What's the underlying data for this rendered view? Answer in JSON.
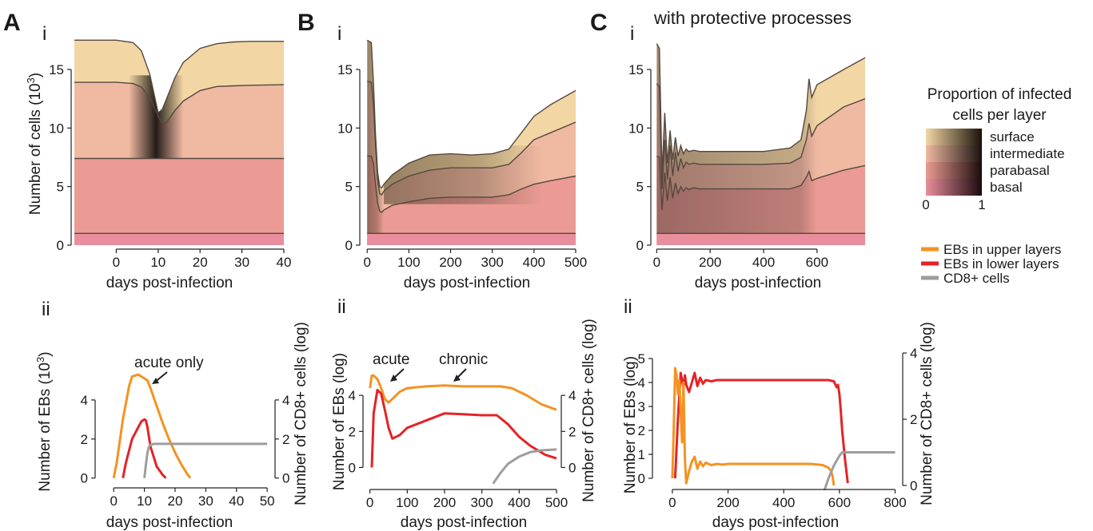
{
  "figure": {
    "panel_labels": [
      "A",
      "B",
      "C"
    ],
    "sub_top": "i",
    "sub_bottom": "ii",
    "c_title": "with protective processes",
    "xlabel": "days post-infection",
    "top_ylabel_base": "Number of cells (10",
    "top_ylabel_sup": "3",
    "top_ylabel_end": ")",
    "a_ii_ylabel_base": "Number of EBs (10",
    "a_ii_ylabel_sup": "3",
    "a_ii_ylabel_end": ")",
    "log_ylabel": "Number of EBs  (log)",
    "cd8_ylabel": "Number of CD8+ cells (log)",
    "ann_acute_only": "acute only",
    "ann_acute": "acute",
    "ann_chronic": "chronic"
  },
  "legend_layers": {
    "title_line1": "Proportion of infected",
    "title_line2": "cells per layer",
    "rows": [
      "surface",
      "intermediate",
      "parabasal",
      "basal"
    ],
    "scale_min": "0",
    "scale_max": "1",
    "colors": [
      "#f2d6a4",
      "#f0b9a2",
      "#eb9b93",
      "#e98e9c"
    ]
  },
  "legend_lines": {
    "items": [
      {
        "label": "EBs in upper layers",
        "color": "#f39321"
      },
      {
        "label": "EBs in lower layers",
        "color": "#e42327"
      },
      {
        "label": "CD8+ cells",
        "color": "#9d9d9d"
      }
    ]
  },
  "chart_data": [
    {
      "id": "A-i",
      "type": "area",
      "x": [
        -10,
        0,
        4,
        6,
        8,
        10,
        11,
        12,
        14,
        16,
        20,
        24,
        28,
        32,
        40
      ],
      "series": [
        {
          "name": "basal",
          "values": [
            1,
            1,
            1,
            1,
            1,
            1,
            1,
            1,
            1,
            1,
            1,
            1,
            1,
            1,
            1
          ]
        },
        {
          "name": "parabasal",
          "values": [
            7.4,
            7.4,
            7.4,
            7.4,
            7.4,
            7.4,
            7.4,
            7.4,
            7.4,
            7.4,
            7.4,
            7.4,
            7.4,
            7.4,
            7.4
          ]
        },
        {
          "name": "intermediate",
          "values": [
            13.9,
            13.9,
            13.8,
            13.5,
            12.6,
            11.0,
            10.3,
            10.5,
            11.5,
            12.3,
            13.2,
            13.55,
            13.6,
            13.65,
            13.7
          ]
        },
        {
          "name": "surface",
          "values": [
            17.5,
            17.5,
            17.3,
            16.6,
            14.6,
            11.3,
            11.6,
            12.5,
            14.3,
            15.6,
            16.8,
            17.2,
            17.35,
            17.4,
            17.4
          ]
        }
      ],
      "ylim": [
        0,
        18
      ],
      "xlim": [
        -10,
        40
      ],
      "xticks": [
        0,
        10,
        20,
        30,
        40
      ],
      "yticks": [
        0,
        5,
        10,
        15
      ]
    },
    {
      "id": "B-i",
      "type": "area",
      "x": [
        0,
        10,
        15,
        20,
        25,
        30,
        35,
        40,
        60,
        100,
        150,
        200,
        250,
        300,
        340,
        370,
        400,
        440,
        500
      ],
      "series": [
        {
          "name": "basal",
          "values": [
            1,
            1,
            1,
            1,
            1,
            1,
            1,
            1,
            1,
            1,
            1,
            1,
            1,
            1,
            1,
            1,
            1,
            1,
            1
          ]
        },
        {
          "name": "parabasal",
          "values": [
            7.6,
            7.6,
            7.0,
            5.2,
            3.6,
            2.9,
            2.8,
            3.0,
            3.4,
            3.7,
            4.0,
            4.1,
            4.1,
            4.1,
            4.3,
            4.8,
            5.2,
            5.5,
            5.9
          ]
        },
        {
          "name": "intermediate",
          "values": [
            14.0,
            13.9,
            12.0,
            8.5,
            5.6,
            4.4,
            4.3,
            4.6,
            5.2,
            5.9,
            6.4,
            6.6,
            6.6,
            6.6,
            6.9,
            7.9,
            9.0,
            9.6,
            10.5
          ]
        },
        {
          "name": "surface",
          "values": [
            17.5,
            17.3,
            14.0,
            9.5,
            6.2,
            5.0,
            4.9,
            5.2,
            6.0,
            7.0,
            7.7,
            7.8,
            7.7,
            7.8,
            8.2,
            9.6,
            11.0,
            12.0,
            13.2
          ]
        }
      ],
      "ylim": [
        0,
        18
      ],
      "xlim": [
        -10,
        500
      ],
      "xticks": [
        0,
        100,
        200,
        300,
        400,
        500
      ],
      "yticks": [
        0,
        5,
        10,
        15
      ]
    },
    {
      "id": "C-i",
      "type": "area",
      "x": [
        0,
        10,
        20,
        30,
        40,
        50,
        60,
        70,
        80,
        90,
        100,
        110,
        120,
        140,
        160,
        200,
        300,
        400,
        500,
        540,
        560,
        570,
        580,
        600,
        700,
        780
      ],
      "series": [
        {
          "name": "basal",
          "values": [
            1,
            1,
            1,
            1,
            1,
            1,
            1,
            1,
            1,
            1,
            1,
            1,
            1,
            1,
            1,
            1,
            1,
            1,
            1,
            1,
            1,
            1,
            1,
            1,
            1,
            1
          ]
        },
        {
          "name": "parabasal",
          "values": [
            7.6,
            7.5,
            3.0,
            6.2,
            3.8,
            5.8,
            4.0,
            5.3,
            4.4,
            5.0,
            4.6,
            4.9,
            4.75,
            4.9,
            4.8,
            4.8,
            4.8,
            4.8,
            4.8,
            5.1,
            5.8,
            6.3,
            5.5,
            5.7,
            6.4,
            6.8
          ]
        },
        {
          "name": "intermediate",
          "values": [
            13.8,
            13.5,
            4.8,
            9.0,
            5.6,
            8.5,
            5.9,
            7.9,
            6.3,
            7.4,
            6.6,
            7.1,
            6.9,
            7.0,
            6.9,
            6.9,
            6.9,
            6.9,
            7.0,
            7.5,
            9.0,
            10.4,
            9.3,
            10.2,
            11.8,
            12.5
          ]
        },
        {
          "name": "surface",
          "values": [
            17.2,
            16.8,
            6.0,
            11.3,
            7.0,
            9.8,
            7.3,
            9.2,
            7.6,
            8.5,
            7.8,
            8.2,
            8.0,
            8.1,
            8.0,
            8.0,
            8.0,
            8.0,
            8.3,
            9.0,
            11.5,
            14.2,
            12.6,
            13.7,
            15.0,
            16.0
          ]
        }
      ],
      "ylim": [
        0,
        18
      ],
      "xlim": [
        -10,
        780
      ],
      "xticks": [
        0,
        200,
        400,
        600
      ],
      "yticks": [
        0,
        5,
        10,
        15
      ]
    },
    {
      "id": "A-ii",
      "type": "line",
      "series": [
        {
          "name": "EBs in upper layers",
          "axis": "left",
          "x": [
            0,
            1,
            3,
            5,
            6,
            8,
            10,
            11,
            12,
            14,
            16,
            18,
            20,
            22,
            24,
            25
          ],
          "values": [
            0,
            0.8,
            3.0,
            4.7,
            5.2,
            5.3,
            5.1,
            5.0,
            4.6,
            3.7,
            2.8,
            2.0,
            1.3,
            0.7,
            0.2,
            0
          ]
        },
        {
          "name": "EBs in lower layers",
          "axis": "left",
          "x": [
            3,
            4,
            6,
            8,
            9,
            10,
            10.5,
            11,
            12,
            14,
            16,
            17
          ],
          "values": [
            0,
            0.8,
            2.0,
            2.6,
            2.9,
            3.0,
            2.95,
            2.6,
            1.6,
            0.6,
            0.15,
            0
          ]
        },
        {
          "name": "CD8+ cells",
          "axis": "right",
          "x": [
            10,
            10.5,
            11,
            11.5,
            12,
            13,
            15,
            20,
            30,
            40,
            50
          ],
          "values": [
            0,
            0.7,
            1.3,
            1.6,
            1.7,
            1.75,
            1.75,
            1.75,
            1.75,
            1.75,
            1.75
          ]
        }
      ],
      "xlim": [
        -5,
        51
      ],
      "ylim": [
        -0.3,
        6
      ],
      "y2lim": [
        -0.3,
        6
      ],
      "xticks": [
        0,
        10,
        20,
        30,
        40,
        50
      ],
      "yticks": [
        0,
        2,
        4
      ],
      "y2ticks": [
        0,
        2,
        4
      ]
    },
    {
      "id": "B-ii",
      "type": "line",
      "series": [
        {
          "name": "EBs in upper layers",
          "axis": "left",
          "x": [
            0,
            5,
            10,
            20,
            30,
            40,
            50,
            60,
            80,
            100,
            150,
            200,
            250,
            300,
            350,
            380,
            420,
            460,
            500
          ],
          "values": [
            4.4,
            5.1,
            5.1,
            4.9,
            4.4,
            3.8,
            3.6,
            3.8,
            4.2,
            4.4,
            4.5,
            4.55,
            4.5,
            4.5,
            4.5,
            4.4,
            4.0,
            3.5,
            3.2
          ]
        },
        {
          "name": "EBs in lower layers",
          "axis": "left",
          "x": [
            5,
            10,
            20,
            30,
            40,
            50,
            60,
            80,
            100,
            150,
            200,
            250,
            300,
            340,
            370,
            400,
            430,
            470,
            500
          ],
          "values": [
            0,
            3.0,
            4.3,
            4.1,
            3.2,
            2.2,
            1.6,
            1.8,
            2.2,
            2.6,
            3.0,
            2.95,
            2.9,
            2.9,
            2.4,
            1.7,
            1.2,
            0.7,
            0.5
          ]
        },
        {
          "name": "CD8+ cells",
          "axis": "right",
          "x": [
            330,
            340,
            350,
            370,
            400,
            430,
            460,
            500
          ],
          "values": [
            -0.9,
            -0.6,
            -0.3,
            0.2,
            0.6,
            0.85,
            0.95,
            1.0
          ]
        }
      ],
      "xlim": [
        -10,
        500
      ],
      "ylim": [
        -1,
        6
      ],
      "y2lim": [
        -1,
        6
      ],
      "xticks": [
        0,
        100,
        200,
        300,
        400,
        500
      ],
      "yticks": [
        0,
        2,
        4
      ],
      "y2ticks": [
        0,
        2,
        4
      ]
    },
    {
      "id": "C-ii",
      "type": "line",
      "series": [
        {
          "name": "EBs in lower layers",
          "axis": "left",
          "x": [
            10,
            20,
            30,
            40,
            45,
            50,
            60,
            70,
            80,
            90,
            100,
            110,
            120,
            140,
            160,
            180,
            200,
            300,
            400,
            500,
            560,
            580,
            590,
            595,
            600,
            605,
            610,
            620,
            630
          ],
          "values": [
            0,
            2.5,
            4.4,
            3.8,
            4.3,
            3.9,
            3.6,
            4.0,
            4.4,
            3.85,
            4.2,
            3.95,
            4.1,
            4.05,
            4.1,
            4.1,
            4.1,
            4.1,
            4.1,
            4.1,
            4.1,
            4.05,
            3.8,
            3.9,
            3.5,
            2.8,
            2.0,
            0.8,
            -0.2
          ]
        },
        {
          "name": "EBs in upper layers",
          "axis": "left",
          "x": [
            0,
            5,
            10,
            15,
            20,
            25,
            30,
            35,
            40,
            45,
            50,
            60,
            70,
            80,
            90,
            100,
            110,
            120,
            140,
            160,
            180,
            200,
            300,
            400,
            500,
            540,
            560,
            570,
            575,
            580
          ],
          "values": [
            0,
            2,
            4.6,
            4.3,
            3.5,
            4.1,
            2.8,
            1.5,
            4.0,
            0.8,
            -0.2,
            0.3,
            0.7,
            0.9,
            0.4,
            0.7,
            0.5,
            0.65,
            0.55,
            0.6,
            0.57,
            0.6,
            0.6,
            0.6,
            0.6,
            0.55,
            0.45,
            0.3,
            0.1,
            -0.3
          ]
        },
        {
          "name": "CD8+ cells",
          "axis": "right",
          "x": [
            540,
            560,
            580,
            600,
            610,
            620,
            700,
            800
          ],
          "values": [
            -0.3,
            0.2,
            0.6,
            0.9,
            1.0,
            1.0,
            1.0,
            1.0
          ]
        }
      ],
      "xlim": [
        -60,
        810
      ],
      "ylim": [
        -0.3,
        5.3
      ],
      "y2lim": [
        0,
        4.05
      ],
      "xticks": [
        0,
        200,
        400,
        600,
        800
      ],
      "yticks": [
        0,
        1,
        2,
        3,
        4,
        5
      ],
      "y2ticks": [
        0,
        2,
        4
      ]
    }
  ]
}
